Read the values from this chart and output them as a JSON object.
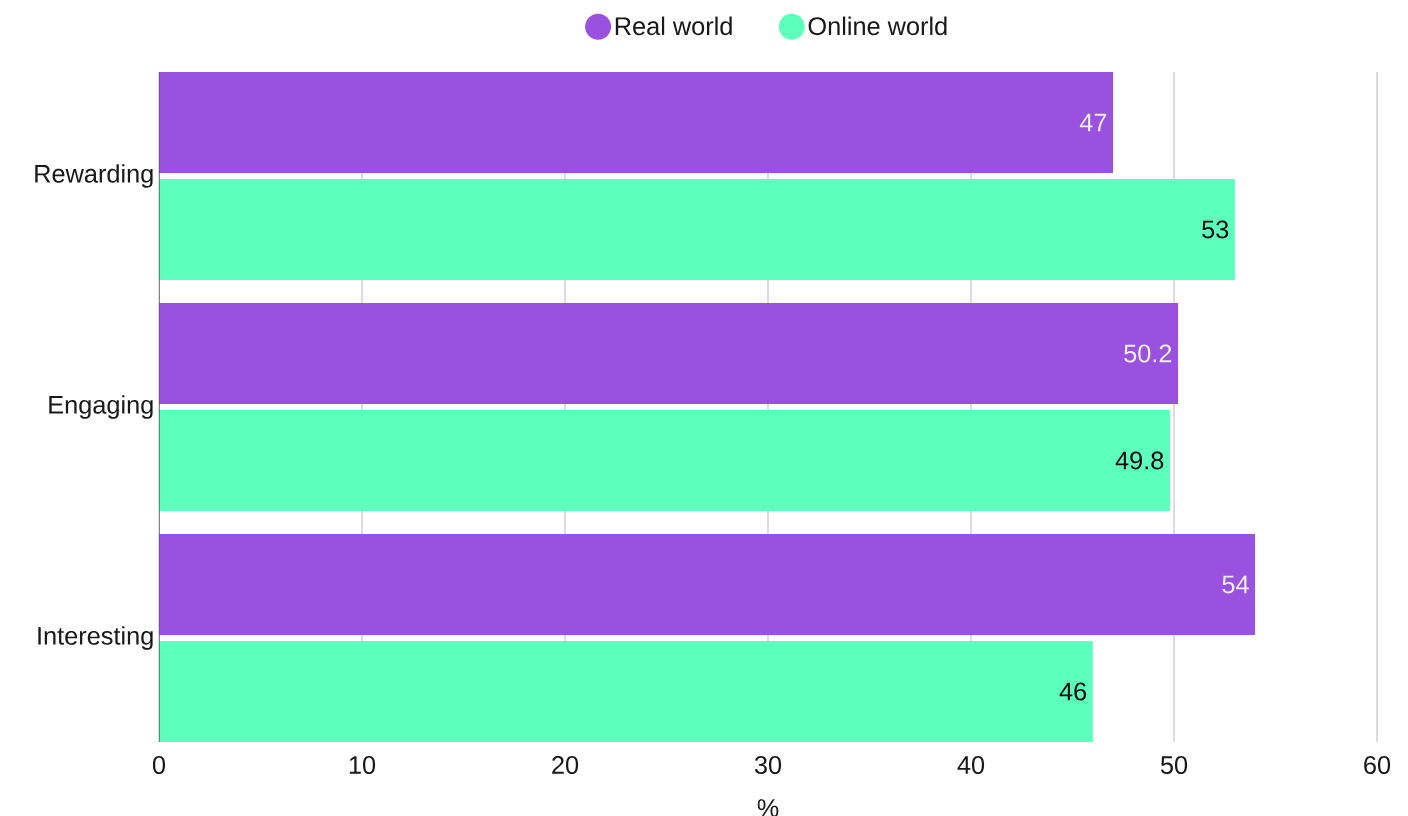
{
  "chart_data": {
    "type": "bar",
    "orientation": "horizontal",
    "xlabel": "%",
    "categories": [
      "Rewarding",
      "Engaging",
      "Interesting"
    ],
    "series": [
      {
        "name": "Real world",
        "color": "#9b51e0",
        "values": [
          47,
          50.2,
          54
        ]
      },
      {
        "name": "Online world",
        "color": "#5cffbc",
        "values": [
          53,
          49.8,
          46
        ]
      }
    ],
    "xlim": [
      0,
      60
    ],
    "xticks": [
      0,
      10,
      20,
      30,
      40,
      50,
      60
    ],
    "grid": "x",
    "legend": "top",
    "data_labels": true
  }
}
